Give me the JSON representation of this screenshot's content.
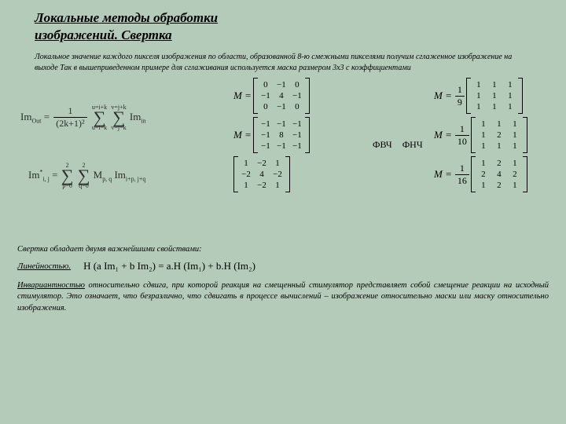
{
  "title_line1": "Локальные методы обработки",
  "title_line2": "изображений. Свертка",
  "intro": "Локальное значение каждого пикселя изображения по области, образованной 8-ю смежными пикселями получим сглаженное изображение на выходе Так в вышеприведенном примере для сглаживания используется маска размером 3х3 с коэффициентами",
  "eq_out": {
    "lhs": "Im",
    "lhs_sub": "Out",
    "frac_num": "1",
    "frac_den": "(2k+1)²",
    "sig1_top": "u=i+k",
    "sig1_bot": "u=i−k",
    "sig2_top": "v=j+k",
    "sig2_bot": "v=j−k",
    "rhs": "Im",
    "rhs_sub": "in"
  },
  "eq_m": {
    "lhs": "Im",
    "lhs_sub": "i, j",
    "lhs_sup": "*",
    "sig1_top": "2",
    "sig1_bot": "p=0",
    "sig2_top": "2",
    "sig2_bot": "q=0",
    "mid": "M",
    "mid_sub": "p, q",
    "rhs": "Im",
    "rhs_sub": "i+p, j+q"
  },
  "mid_label1": "ФВЧ",
  "mid_label2": "ФНЧ",
  "mid_matrices": [
    {
      "prefix": "M =",
      "rows": [
        [
          "0",
          "−1",
          "0"
        ],
        [
          "−1",
          "4",
          "−1"
        ],
        [
          "0",
          "−1",
          "0"
        ]
      ]
    },
    {
      "prefix": "M =",
      "rows": [
        [
          "−1",
          "−1",
          "−1"
        ],
        [
          "−1",
          "8",
          "−1"
        ],
        [
          "−1",
          "−1",
          "−1"
        ]
      ]
    },
    {
      "prefix": "",
      "rows": [
        [
          "1",
          "−2",
          "1"
        ],
        [
          "−2",
          "4",
          "−2"
        ],
        [
          "1",
          "−2",
          "1"
        ]
      ]
    }
  ],
  "right_matrices": [
    {
      "prefix": "M =",
      "factor_num": "1",
      "factor_den": "9",
      "rows": [
        [
          "1",
          "1",
          "1"
        ],
        [
          "1",
          "1",
          "1"
        ],
        [
          "1",
          "1",
          "1"
        ]
      ]
    },
    {
      "prefix": "M =",
      "factor_num": "1",
      "factor_den": "10",
      "rows": [
        [
          "1",
          "1",
          "1"
        ],
        [
          "1",
          "2",
          "1"
        ],
        [
          "1",
          "1",
          "1"
        ]
      ]
    },
    {
      "prefix": "M =",
      "factor_num": "1",
      "factor_den": "16",
      "rows": [
        [
          "1",
          "2",
          "1"
        ],
        [
          "2",
          "4",
          "2"
        ],
        [
          "1",
          "2",
          "1"
        ]
      ]
    }
  ],
  "props_line": "Свертка обладает двумя важнейшими свойствами:",
  "linearity_label": "Линейностью",
  "linearity_eq": "H (a Im₁ + b Im₂) = a.H (Im₁) + b.H (Im₂)",
  "invariance_label": "Инвариантностью",
  "invariance_text": " относительно сдвига, при которой реакция на смещенный стимулятор представляет собой смещение реакции на исходный стимулятор. Это означает, что безразлично, что сдвигать в процессе вычислений – изображение относительно маски или маску относительно изображения.",
  "colors": {
    "bg": "#b5cbb9",
    "text": "#000000"
  }
}
